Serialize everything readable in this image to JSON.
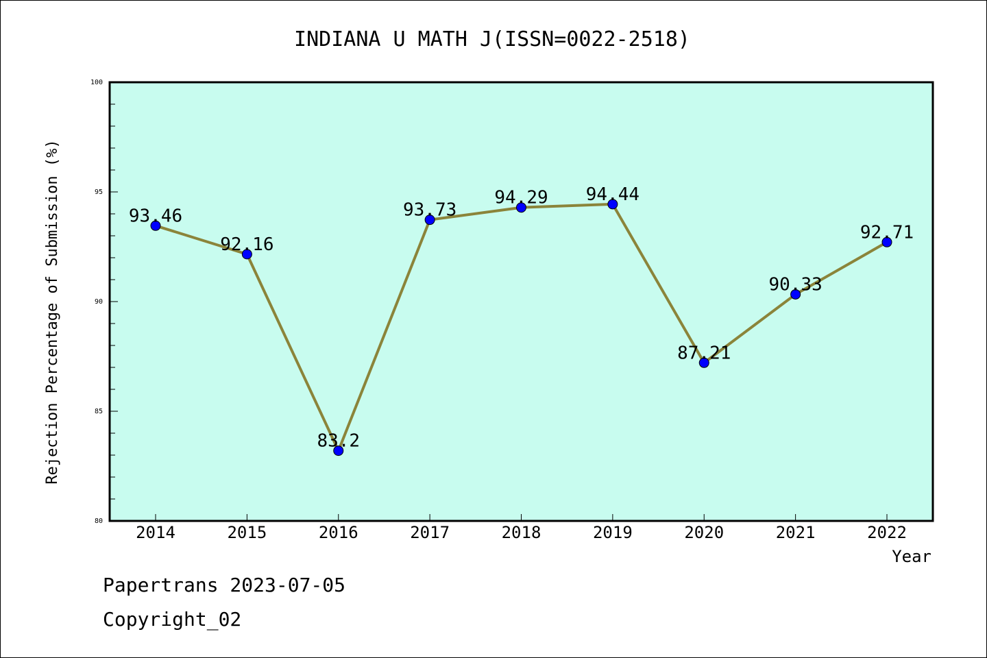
{
  "chart_data": {
    "type": "line",
    "title": "INDIANA U MATH J(ISSN=0022-2518)",
    "xlabel": "Year",
    "ylabel": "Rejection Percentage of Submission (%)",
    "categories": [
      "2014",
      "2015",
      "2016",
      "2017",
      "2018",
      "2019",
      "2020",
      "2021",
      "2022"
    ],
    "values": [
      93.46,
      92.16,
      83.2,
      93.73,
      94.29,
      94.44,
      87.21,
      90.33,
      92.71
    ],
    "data_labels": [
      "93.46",
      "92.16",
      "83.2",
      "93.73",
      "94.29",
      "94.44",
      "87.21",
      "90.33",
      "92.71"
    ],
    "ylim": [
      80,
      100
    ],
    "yticks": [
      "80",
      "85",
      "90",
      "95",
      "100"
    ],
    "grid": false,
    "colors": {
      "plot_background": "#c8fcef",
      "line": "#8b843a",
      "marker": "#0000ff"
    }
  },
  "footer": {
    "line1": "Papertrans 2023-07-05",
    "line2": "Copyright_02"
  }
}
